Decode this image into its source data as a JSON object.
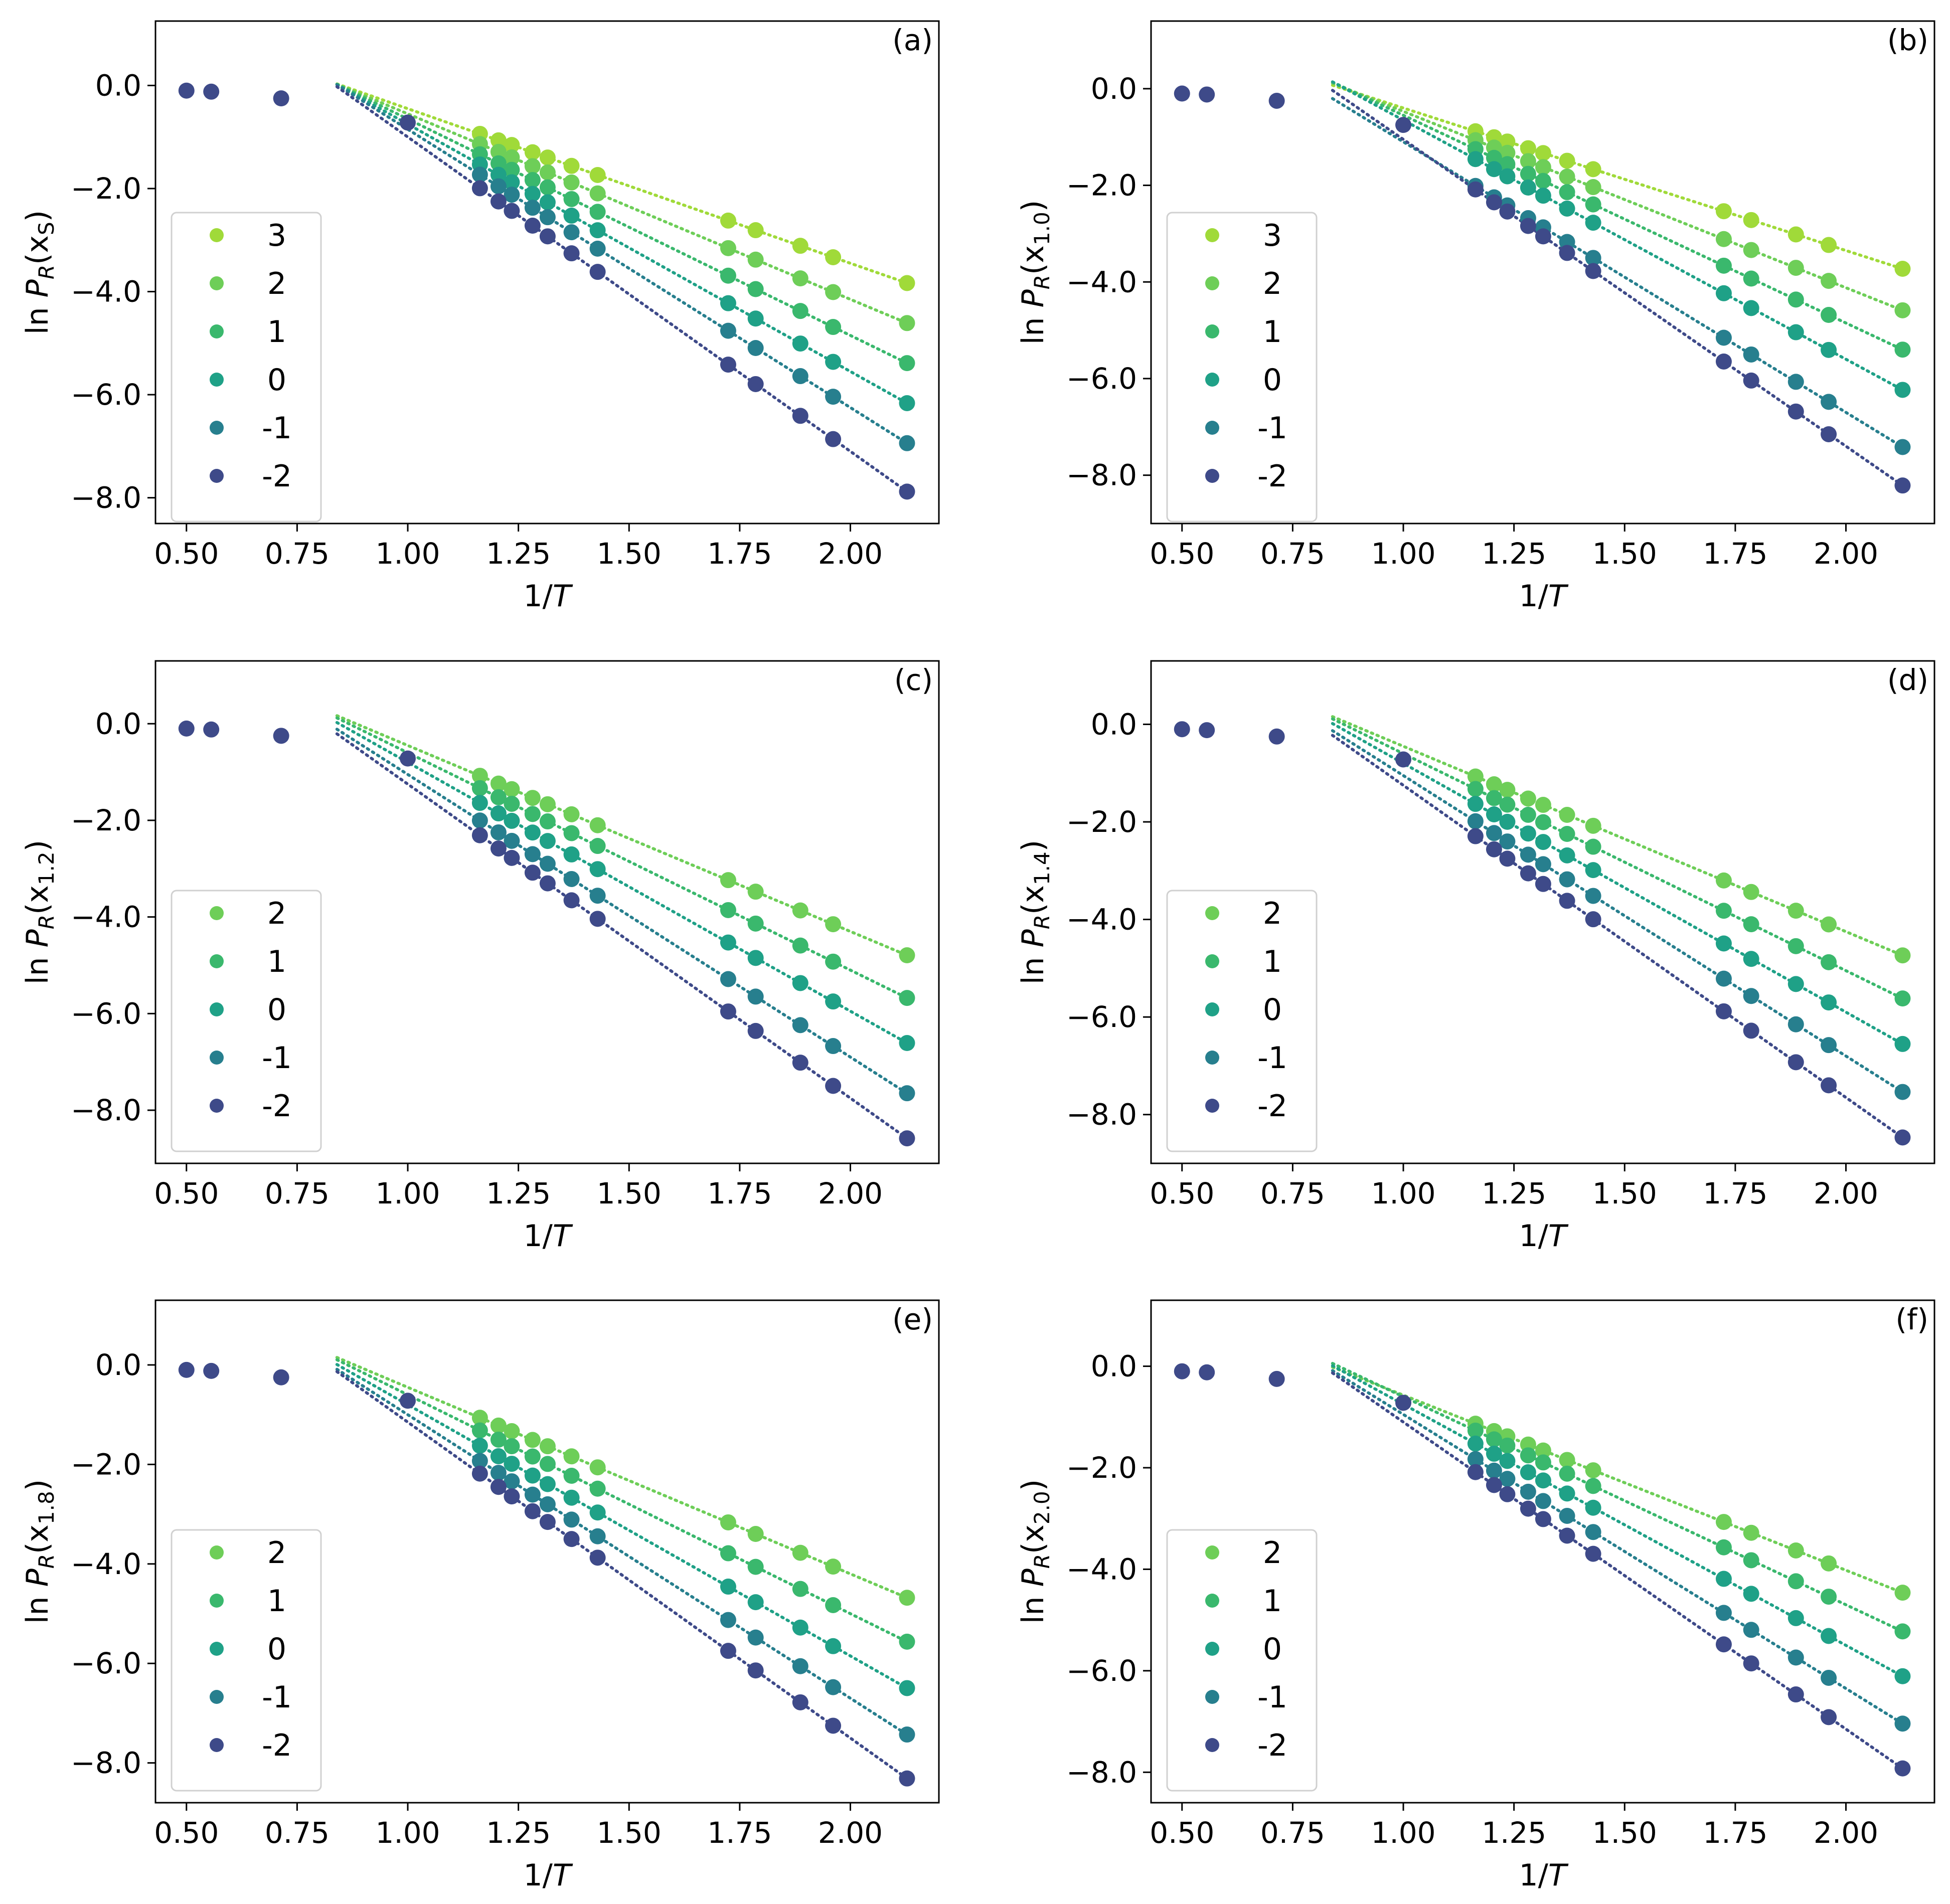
{
  "figure": {
    "x_ticks": [
      0.5,
      0.75,
      1.0,
      1.25,
      1.5,
      1.75,
      2.0
    ],
    "x_tick_labels": [
      "0.50",
      "0.75",
      "1.00",
      "1.25",
      "1.50",
      "1.75",
      "2.00"
    ],
    "y_ticks": [
      0,
      -2,
      -4,
      -6,
      -8
    ],
    "y_tick_labels": [
      "0.0",
      "−2.0",
      "−4.0",
      "−6.0",
      "−8.0"
    ],
    "xlim": [
      0.43,
      2.2
    ],
    "xlabel": "1/T",
    "ylabel_prefix": "ln P",
    "ylabel_sub": "R",
    "colors": {
      "3": "#a0da39",
      "2": "#6ece58",
      "1": "#3ab86d",
      "0": "#1fa187",
      "-1": "#277f8e",
      "-2": "#3e4a89"
    },
    "fit_line_x": [
      0.84,
      2.13
    ],
    "x_points": [
      0.5,
      0.556,
      0.714,
      1.0,
      1.163,
      1.205,
      1.235,
      1.282,
      1.316,
      1.37,
      1.429,
      1.724,
      1.786,
      1.887,
      1.961,
      2.128
    ]
  },
  "chart_data": [
    {
      "type": "scatter",
      "panel": "(a)",
      "ylabel_var": "x",
      "ylabel_sub": "S",
      "ylim": [
        -8.5,
        1.25
      ],
      "legend_position": "center-left",
      "series": [
        {
          "name": "3",
          "slope": -3.0,
          "intercept": 2.55
        },
        {
          "name": "2",
          "slope": -3.6,
          "intercept": 3.05
        },
        {
          "name": "1",
          "slope": -4.2,
          "intercept": 3.55
        },
        {
          "name": "0",
          "slope": -4.8,
          "intercept": 4.05
        },
        {
          "name": "-1",
          "slope": -5.4,
          "intercept": 4.55
        },
        {
          "name": "-2",
          "slope": -6.1,
          "intercept": 5.1
        }
      ],
      "common_points": {
        "x": [
          0.5,
          0.556,
          0.714,
          1.0
        ],
        "y": [
          -0.1,
          -0.12,
          -0.25,
          -0.72
        ]
      }
    },
    {
      "type": "scatter",
      "panel": "(b)",
      "ylabel_var": "x",
      "ylabel_sub": "1.0",
      "ylim": [
        -9.0,
        1.4
      ],
      "legend_position": "center-left",
      "series": [
        {
          "name": "3",
          "slope": -2.95,
          "intercept": 2.55
        },
        {
          "name": "2",
          "slope": -3.65,
          "intercept": 3.18
        },
        {
          "name": "1",
          "slope": -4.3,
          "intercept": 3.75
        },
        {
          "name": "0",
          "slope": -4.95,
          "intercept": 4.3
        },
        {
          "name": "-1",
          "slope": -5.6,
          "intercept": 4.5
        },
        {
          "name": "-2",
          "slope": -6.35,
          "intercept": 5.3
        }
      ],
      "common_points": {
        "x": [
          0.5,
          0.556,
          0.714,
          1.0
        ],
        "y": [
          -0.1,
          -0.12,
          -0.25,
          -0.75
        ]
      }
    },
    {
      "type": "scatter",
      "panel": "(c)",
      "ylabel_var": "x",
      "ylabel_sub": "1.2",
      "ylim": [
        -9.1,
        1.3
      ],
      "legend_position": "bottom-left",
      "series": [
        {
          "name": "2",
          "slope": -3.85,
          "intercept": 3.4
        },
        {
          "name": "1",
          "slope": -4.5,
          "intercept": 3.9
        },
        {
          "name": "0",
          "slope": -5.15,
          "intercept": 4.35
        },
        {
          "name": "-1",
          "slope": -5.85,
          "intercept": 4.8
        },
        {
          "name": "-2",
          "slope": -6.5,
          "intercept": 5.25
        }
      ],
      "common_points": {
        "x": [
          0.5,
          0.556,
          0.714,
          1.0
        ],
        "y": [
          -0.1,
          -0.12,
          -0.25,
          -0.72
        ]
      }
    },
    {
      "type": "scatter",
      "panel": "(d)",
      "ylabel_var": "x",
      "ylabel_sub": "1.4",
      "ylim": [
        -9.0,
        1.3
      ],
      "legend_position": "bottom-left",
      "series": [
        {
          "name": "2",
          "slope": -3.8,
          "intercept": 3.35
        },
        {
          "name": "1",
          "slope": -4.45,
          "intercept": 3.85
        },
        {
          "name": "0",
          "slope": -5.1,
          "intercept": 4.3
        },
        {
          "name": "-1",
          "slope": -5.75,
          "intercept": 4.7
        },
        {
          "name": "-2",
          "slope": -6.4,
          "intercept": 5.15
        }
      ],
      "common_points": {
        "x": [
          0.5,
          0.556,
          0.714,
          1.0
        ],
        "y": [
          -0.1,
          -0.12,
          -0.25,
          -0.72
        ]
      }
    },
    {
      "type": "scatter",
      "panel": "(e)",
      "ylabel_var": "x",
      "ylabel_sub": "1.8",
      "ylim": [
        -8.8,
        1.3
      ],
      "legend_position": "bottom-left",
      "series": [
        {
          "name": "2",
          "slope": -3.75,
          "intercept": 3.3
        },
        {
          "name": "1",
          "slope": -4.4,
          "intercept": 3.8
        },
        {
          "name": "0",
          "slope": -5.05,
          "intercept": 4.25
        },
        {
          "name": "-1",
          "slope": -5.7,
          "intercept": 4.7
        },
        {
          "name": "-2",
          "slope": -6.35,
          "intercept": 5.2
        }
      ],
      "common_points": {
        "x": [
          0.5,
          0.556,
          0.714,
          1.0
        ],
        "y": [
          -0.1,
          -0.12,
          -0.25,
          -0.72
        ]
      }
    },
    {
      "type": "scatter",
      "panel": "(f)",
      "ylabel_var": "x",
      "ylabel_sub": "2.0",
      "ylim": [
        -8.6,
        1.3
      ],
      "legend_position": "bottom-left",
      "series": [
        {
          "name": "2",
          "slope": -3.45,
          "intercept": 2.88
        },
        {
          "name": "1",
          "slope": -4.1,
          "intercept": 3.5
        },
        {
          "name": "0",
          "slope": -4.75,
          "intercept": 4.0
        },
        {
          "name": "-1",
          "slope": -5.4,
          "intercept": 4.45
        },
        {
          "name": "-2",
          "slope": -6.05,
          "intercept": 4.95
        }
      ],
      "common_points": {
        "x": [
          0.5,
          0.556,
          0.714,
          1.0
        ],
        "y": [
          -0.1,
          -0.12,
          -0.25,
          -0.72
        ]
      }
    }
  ]
}
